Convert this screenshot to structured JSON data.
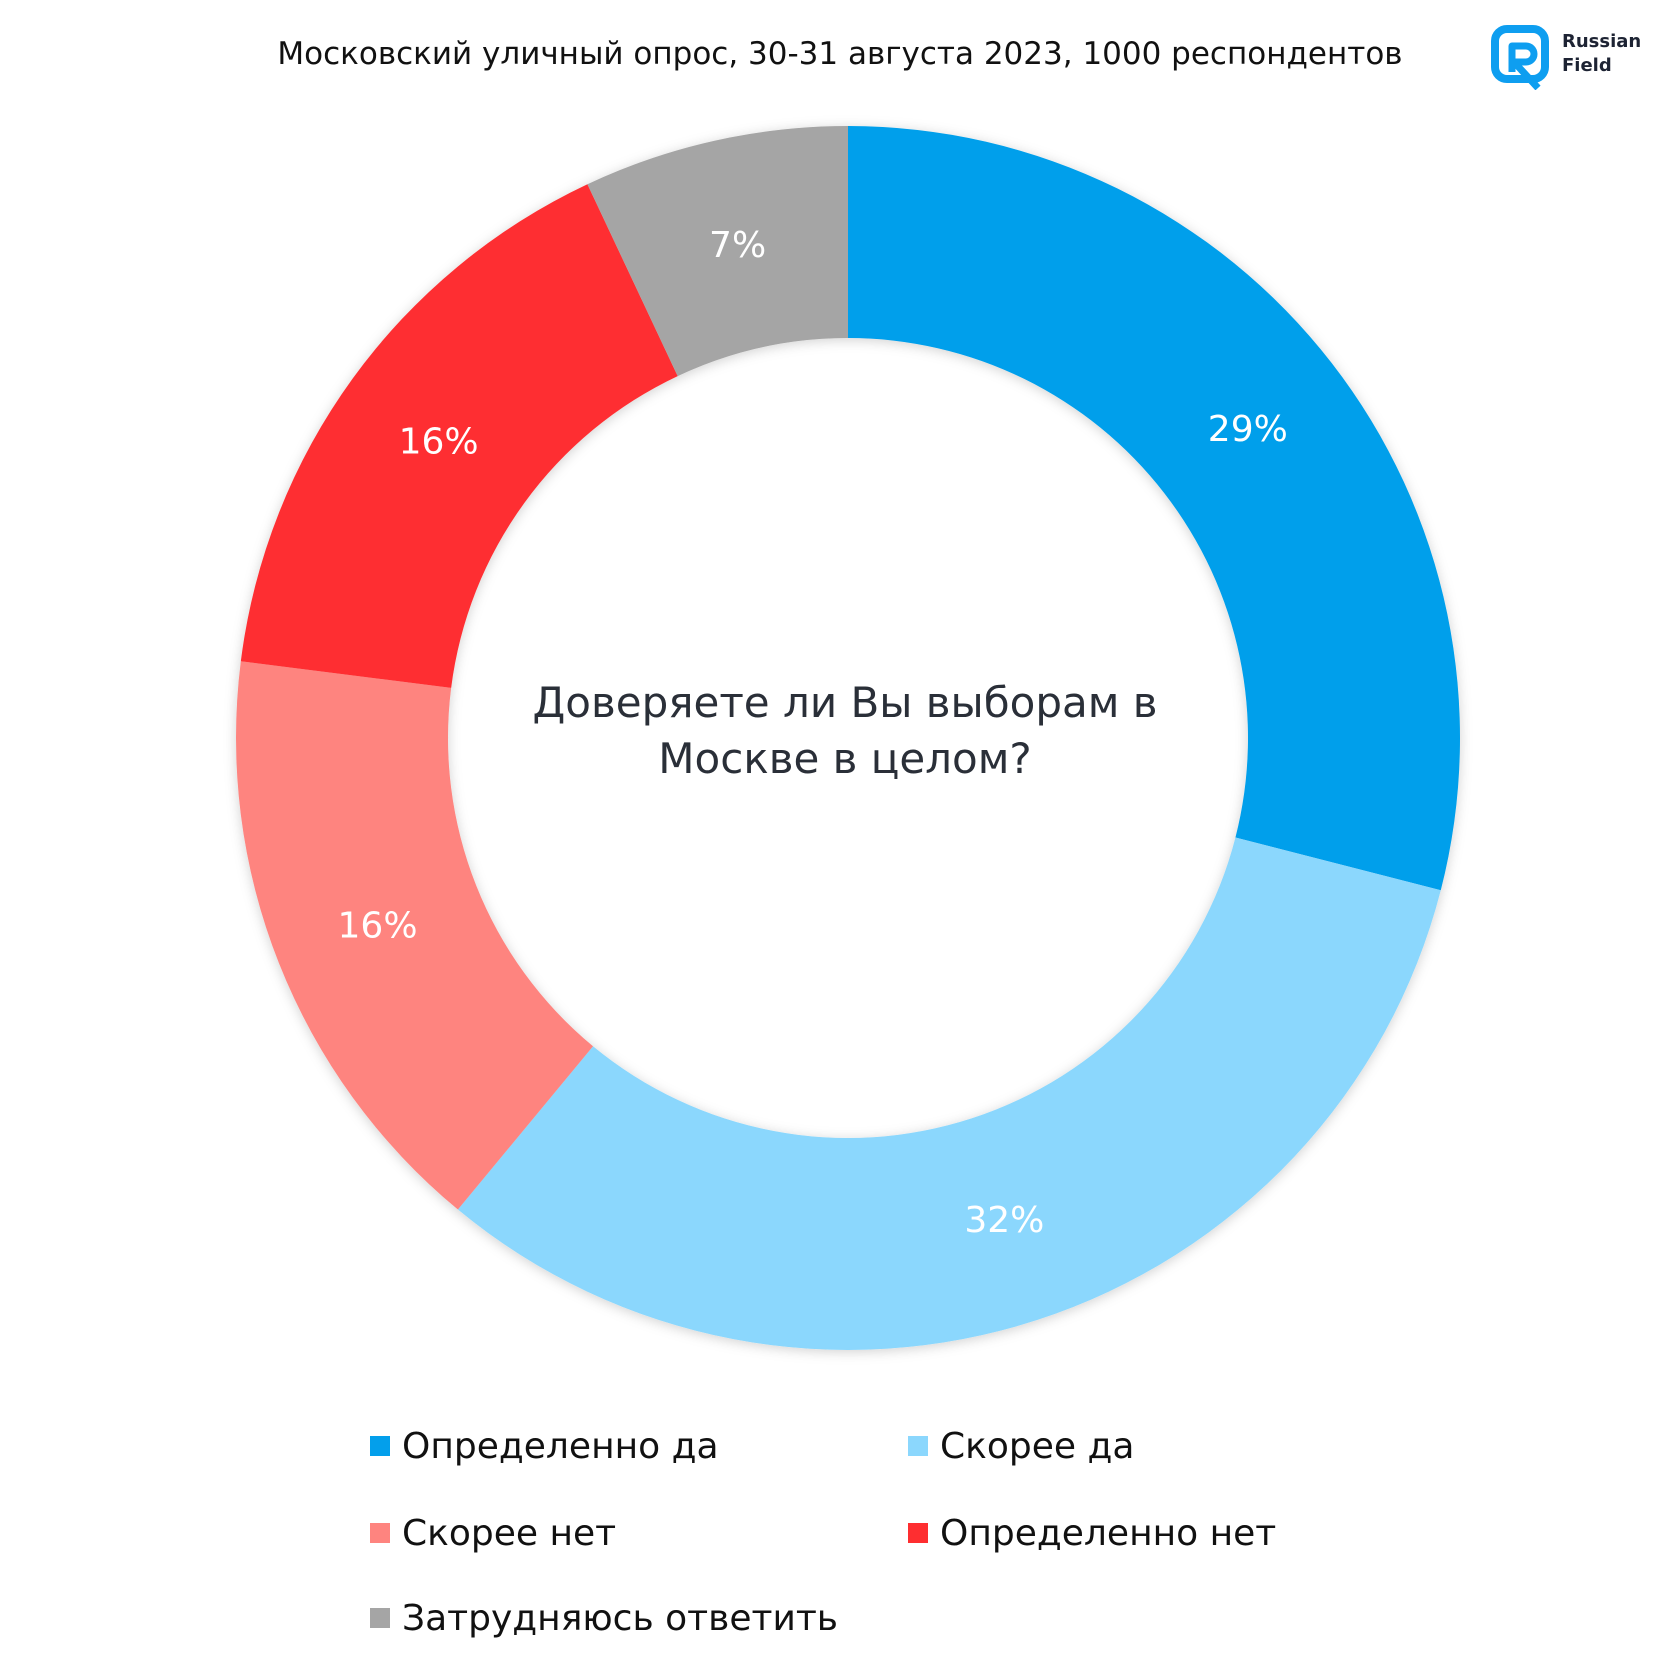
{
  "header": {
    "title": "Московский уличный опрос, 30-31 августа 2023, 1000 респондентов",
    "logo_line1": "Russian",
    "logo_line2": "Field",
    "logo_color": "#0e9ef0"
  },
  "center_question": {
    "line1": "Доверяете ли Вы выборам в",
    "line2": "Москве в целом?"
  },
  "chart_data": {
    "type": "pie",
    "title": "",
    "donut": true,
    "legend_position": "bottom",
    "series": [
      {
        "name": "Определенно да",
        "value": 29,
        "label": "29%",
        "color": "#039feb"
      },
      {
        "name": "Скорее да",
        "value": 32,
        "label": "32%",
        "color": "#8bd7fd"
      },
      {
        "name": "Скорее нет",
        "value": 16,
        "label": "16%",
        "color": "#fe847f"
      },
      {
        "name": "Определенно нет",
        "value": 16,
        "label": "16%",
        "color": "#fe2e30"
      },
      {
        "name": "Затрудняюсь ответить",
        "value": 7,
        "label": "7%",
        "color": "#a5a5a5"
      }
    ],
    "legend_order": [
      0,
      1,
      2,
      3,
      4
    ]
  }
}
